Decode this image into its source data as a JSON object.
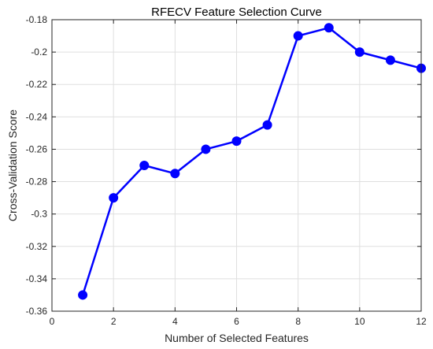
{
  "chart_data": {
    "type": "line",
    "title": "RFECV Feature Selection Curve",
    "xlabel": "Number of Selected Features",
    "ylabel": "Cross-Validation Score",
    "xlim": [
      0,
      12
    ],
    "ylim": [
      -0.36,
      -0.18
    ],
    "x_ticks": [
      0,
      2,
      4,
      6,
      8,
      10,
      12
    ],
    "x_tick_labels": [
      "0",
      "2",
      "4",
      "6",
      "8",
      "10",
      "12"
    ],
    "y_ticks": [
      -0.36,
      -0.34,
      -0.32,
      -0.3,
      -0.28,
      -0.26,
      -0.24,
      -0.22,
      -0.2,
      -0.18
    ],
    "y_tick_labels": [
      "-0.36",
      "-0.34",
      "-0.32",
      "-0.3",
      "-0.28",
      "-0.26",
      "-0.24",
      "-0.22",
      "-0.2",
      "-0.18"
    ],
    "grid": true,
    "series": [
      {
        "x": [
          1,
          2,
          3,
          4,
          5,
          6,
          7,
          8,
          9,
          10,
          11,
          12
        ],
        "y": [
          -0.35,
          -0.29,
          -0.27,
          -0.275,
          -0.26,
          -0.255,
          -0.245,
          -0.19,
          -0.185,
          -0.2,
          -0.205,
          -0.21
        ],
        "color": "#0000ff"
      }
    ]
  }
}
